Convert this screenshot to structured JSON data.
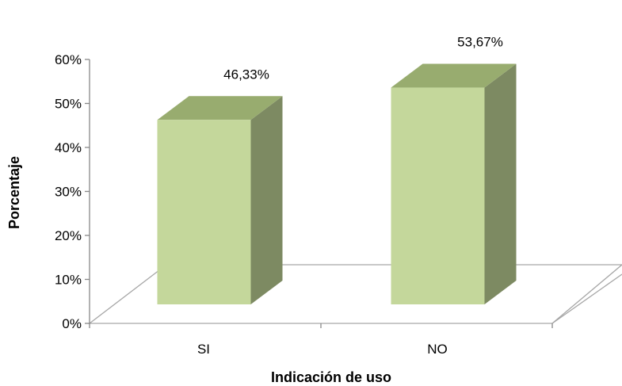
{
  "chart_data": {
    "type": "bar",
    "style": "3d-column",
    "categories": [
      "SI",
      "NO"
    ],
    "values": [
      46.33,
      53.67
    ],
    "data_labels": [
      "46,33%",
      "53,67%"
    ],
    "xlabel": "Indicación de uso",
    "ylabel": "Porcentaje",
    "ylim": [
      0,
      60
    ],
    "y_ticks": [
      "0%",
      "10%",
      "20%",
      "30%",
      "40%",
      "50%",
      "60%"
    ],
    "grid": false,
    "legend": "none",
    "colors": {
      "bar_front": "#c4d79b",
      "bar_top": "#98ac6f",
      "bar_side": "#7d8a62",
      "floor_line": "#a6a6a6"
    }
  }
}
